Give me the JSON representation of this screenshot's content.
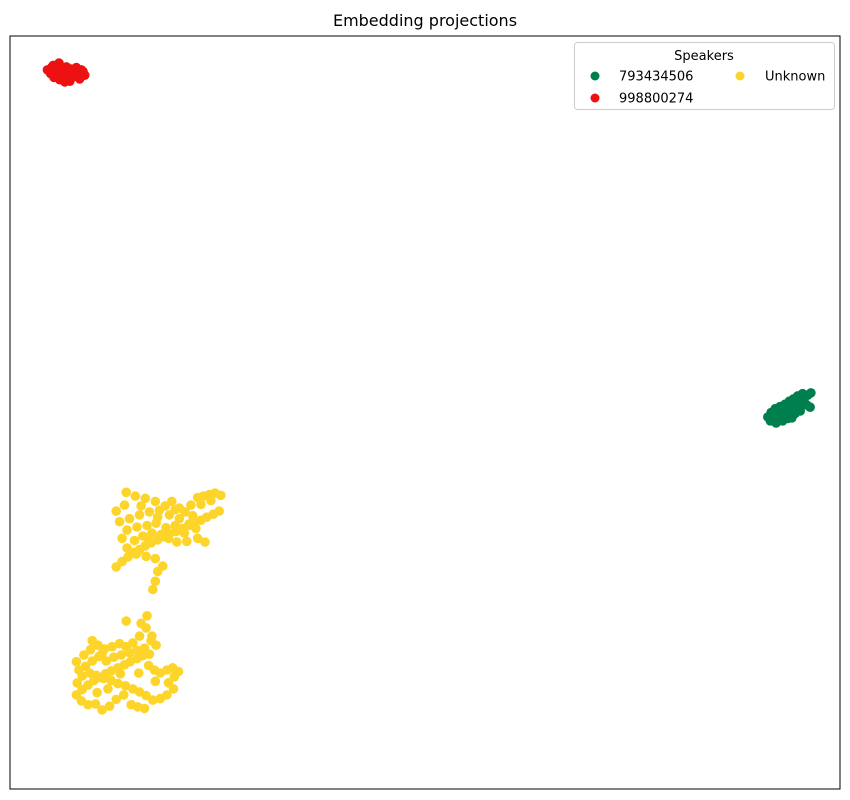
{
  "chart_data": {
    "type": "scatter",
    "title": "Embedding projections",
    "xlabel": "",
    "ylabel": "",
    "xlim": [
      0,
      100
    ],
    "ylim": [
      0,
      100
    ],
    "grid": false,
    "axis_ticks": false,
    "legend": {
      "title": "Speakers",
      "placement": "top-right",
      "columns": 2,
      "entries": [
        {
          "label": "793434506",
          "color": "#007f4e"
        },
        {
          "label": "998800274",
          "color": "#ee1111"
        },
        {
          "label": "Unknown",
          "color": "#fdd52a"
        }
      ]
    },
    "series": [
      {
        "name": "793434506",
        "color": "#007f4e",
        "points": [
          [
            91.3,
            49.4
          ],
          [
            91.9,
            49.7
          ],
          [
            92.4,
            49.9
          ],
          [
            93.0,
            50.2
          ],
          [
            93.5,
            50.6
          ],
          [
            94.0,
            50.9
          ],
          [
            94.5,
            51.3
          ],
          [
            95.0,
            51.6
          ],
          [
            95.6,
            52.0
          ],
          [
            96.1,
            52.3
          ],
          [
            91.7,
            50.0
          ],
          [
            92.2,
            50.5
          ],
          [
            92.8,
            50.8
          ],
          [
            93.4,
            51.1
          ],
          [
            93.9,
            51.5
          ],
          [
            94.4,
            51.8
          ],
          [
            94.9,
            52.2
          ],
          [
            95.5,
            52.5
          ],
          [
            92.5,
            49.6
          ],
          [
            93.2,
            49.8
          ],
          [
            93.8,
            50.3
          ],
          [
            94.3,
            50.6
          ],
          [
            94.9,
            50.9
          ],
          [
            95.4,
            51.4
          ],
          [
            96.0,
            51.0
          ],
          [
            96.4,
            50.7
          ],
          [
            92.0,
            49.2
          ],
          [
            93.6,
            49.6
          ],
          [
            94.6,
            49.9
          ],
          [
            95.2,
            50.2
          ],
          [
            91.6,
            48.9
          ],
          [
            92.3,
            48.6
          ],
          [
            93.1,
            48.9
          ],
          [
            93.7,
            49.2
          ],
          [
            94.2,
            49.3
          ],
          [
            95.7,
            51.9
          ],
          [
            96.5,
            52.6
          ],
          [
            92.9,
            50.0
          ]
        ]
      },
      {
        "name": "998800274",
        "color": "#ee1111",
        "points": [
          [
            4.5,
            95.5
          ],
          [
            5.0,
            95.8
          ],
          [
            5.6,
            96.0
          ],
          [
            6.2,
            95.7
          ],
          [
            6.8,
            95.9
          ],
          [
            7.4,
            95.6
          ],
          [
            8.0,
            95.8
          ],
          [
            8.6,
            95.5
          ],
          [
            9.0,
            94.8
          ],
          [
            8.4,
            94.3
          ],
          [
            7.6,
            94.6
          ],
          [
            6.9,
            94.9
          ],
          [
            6.2,
            95.0
          ],
          [
            5.5,
            95.1
          ],
          [
            4.9,
            95.0
          ],
          [
            5.3,
            94.5
          ],
          [
            6.0,
            94.2
          ],
          [
            6.7,
            94.0
          ],
          [
            7.3,
            94.3
          ],
          [
            5.8,
            95.4
          ],
          [
            6.4,
            95.3
          ],
          [
            7.1,
            95.2
          ],
          [
            7.8,
            95.0
          ],
          [
            8.8,
            95.3
          ],
          [
            6.6,
            93.9
          ],
          [
            7.2,
            94.0
          ],
          [
            5.9,
            96.4
          ],
          [
            5.2,
            96.1
          ]
        ]
      },
      {
        "name": "Unknown",
        "color": "#fdd52a",
        "points": [
          [
            12.8,
            29.5
          ],
          [
            13.5,
            30.2
          ],
          [
            14.2,
            30.8
          ],
          [
            14.9,
            31.4
          ],
          [
            15.6,
            31.8
          ],
          [
            16.3,
            32.3
          ],
          [
            17.0,
            32.7
          ],
          [
            17.8,
            33.1
          ],
          [
            18.5,
            33.5
          ],
          [
            19.2,
            33.9
          ],
          [
            20.0,
            34.2
          ],
          [
            20.8,
            34.6
          ],
          [
            21.5,
            35.0
          ],
          [
            22.3,
            35.4
          ],
          [
            23.0,
            35.7
          ],
          [
            23.7,
            36.1
          ],
          [
            24.5,
            36.5
          ],
          [
            25.2,
            36.9
          ],
          [
            22.6,
            38.7
          ],
          [
            23.3,
            38.9
          ],
          [
            24.0,
            39.1
          ],
          [
            24.7,
            39.3
          ],
          [
            25.4,
            39.0
          ],
          [
            24.2,
            38.3
          ],
          [
            23.0,
            37.8
          ],
          [
            21.8,
            37.7
          ],
          [
            21.1,
            36.8
          ],
          [
            19.9,
            37.1
          ],
          [
            18.7,
            37.6
          ],
          [
            17.5,
            38.2
          ],
          [
            16.3,
            38.6
          ],
          [
            15.1,
            38.9
          ],
          [
            14.0,
            39.4
          ],
          [
            13.8,
            37.7
          ],
          [
            12.8,
            36.9
          ],
          [
            13.2,
            35.5
          ],
          [
            14.4,
            35.9
          ],
          [
            15.6,
            36.4
          ],
          [
            16.8,
            36.8
          ],
          [
            18.0,
            37.0
          ],
          [
            19.2,
            36.4
          ],
          [
            20.4,
            35.9
          ],
          [
            21.6,
            35.2
          ],
          [
            22.4,
            34.6
          ],
          [
            14.1,
            34.4
          ],
          [
            15.3,
            34.8
          ],
          [
            16.5,
            35.0
          ],
          [
            17.6,
            35.3
          ],
          [
            18.8,
            34.7
          ],
          [
            19.9,
            35.0
          ],
          [
            21.0,
            34.0
          ],
          [
            15.0,
            33.0
          ],
          [
            16.0,
            33.6
          ],
          [
            17.1,
            34.0
          ],
          [
            18.2,
            33.8
          ],
          [
            19.1,
            33.3
          ],
          [
            20.1,
            32.8
          ],
          [
            21.3,
            32.9
          ],
          [
            22.6,
            33.3
          ],
          [
            23.5,
            32.8
          ],
          [
            14.1,
            32.0
          ],
          [
            15.2,
            31.2
          ],
          [
            16.4,
            30.9
          ],
          [
            17.5,
            30.6
          ],
          [
            18.4,
            29.6
          ],
          [
            17.8,
            28.9
          ],
          [
            17.5,
            27.6
          ],
          [
            17.2,
            26.5
          ],
          [
            16.6,
            33.4
          ],
          [
            17.8,
            36.1
          ],
          [
            15.8,
            37.6
          ],
          [
            19.5,
            38.2
          ],
          [
            20.4,
            37.3
          ],
          [
            22.0,
            36.3
          ],
          [
            13.5,
            33.3
          ],
          [
            8.0,
            12.5
          ],
          [
            8.7,
            13.2
          ],
          [
            9.4,
            13.8
          ],
          [
            10.1,
            14.4
          ],
          [
            10.8,
            14.8
          ],
          [
            11.5,
            15.3
          ],
          [
            12.2,
            15.7
          ],
          [
            13.0,
            16.1
          ],
          [
            13.8,
            16.5
          ],
          [
            14.5,
            16.9
          ],
          [
            15.3,
            17.3
          ],
          [
            16.0,
            17.7
          ],
          [
            16.8,
            17.9
          ],
          [
            17.6,
            19.1
          ],
          [
            17.1,
            20.3
          ],
          [
            16.4,
            21.4
          ],
          [
            15.6,
            20.3
          ],
          [
            14.8,
            19.4
          ],
          [
            14.0,
            18.9
          ],
          [
            13.2,
            19.3
          ],
          [
            12.3,
            18.9
          ],
          [
            11.4,
            18.6
          ],
          [
            10.6,
            19.1
          ],
          [
            9.7,
            18.5
          ],
          [
            8.9,
            17.8
          ],
          [
            8.0,
            16.9
          ],
          [
            8.3,
            15.8
          ],
          [
            9.1,
            16.3
          ],
          [
            9.9,
            17.0
          ],
          [
            10.7,
            17.6
          ],
          [
            11.6,
            17.0
          ],
          [
            12.5,
            17.5
          ],
          [
            13.4,
            17.8
          ],
          [
            14.4,
            18.1
          ],
          [
            15.3,
            18.4
          ],
          [
            16.2,
            18.7
          ],
          [
            16.7,
            16.4
          ],
          [
            17.4,
            15.8
          ],
          [
            18.1,
            15.4
          ],
          [
            18.9,
            15.8
          ],
          [
            19.6,
            16.1
          ],
          [
            20.3,
            15.6
          ],
          [
            19.8,
            14.9
          ],
          [
            19.1,
            14.1
          ],
          [
            19.7,
            13.3
          ],
          [
            18.9,
            12.5
          ],
          [
            18.1,
            12.0
          ],
          [
            17.2,
            11.8
          ],
          [
            16.4,
            12.4
          ],
          [
            15.6,
            12.9
          ],
          [
            14.8,
            13.3
          ],
          [
            13.9,
            13.7
          ],
          [
            13.0,
            14.0
          ],
          [
            12.2,
            14.4
          ],
          [
            11.3,
            14.7
          ],
          [
            10.4,
            15.1
          ],
          [
            9.6,
            15.4
          ],
          [
            8.7,
            15.0
          ],
          [
            8.1,
            14.1
          ],
          [
            8.6,
            11.7
          ],
          [
            9.4,
            11.2
          ],
          [
            10.3,
            11.3
          ],
          [
            11.1,
            10.5
          ],
          [
            12.0,
            11.0
          ],
          [
            12.8,
            11.9
          ],
          [
            13.7,
            12.5
          ],
          [
            14.6,
            11.2
          ],
          [
            15.4,
            10.9
          ],
          [
            16.2,
            10.7
          ],
          [
            10.5,
            12.8
          ],
          [
            11.8,
            13.3
          ],
          [
            13.3,
            15.3
          ],
          [
            15.5,
            15.4
          ],
          [
            17.5,
            14.3
          ],
          [
            14.0,
            22.3
          ],
          [
            16.5,
            23.0
          ],
          [
            17.0,
            19.7
          ],
          [
            15.8,
            22.0
          ],
          [
            9.9,
            19.7
          ],
          [
            11.1,
            18.0
          ]
        ]
      }
    ]
  }
}
